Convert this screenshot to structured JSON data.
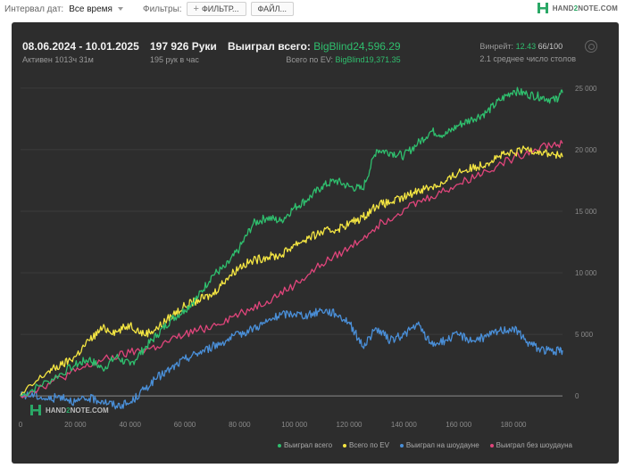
{
  "topbar": {
    "interval_label": "Интервал дат:",
    "interval_value": "Все время",
    "filters_label": "Фильтры:",
    "filter_button": "ФИЛЬТР...",
    "file_button": "ФАЙЛ...",
    "logo_prefix": "HAND",
    "logo_two": "2",
    "logo_suffix": "NOTE.COM"
  },
  "summary": {
    "date_range": "08.06.2024 - 10.01.2025",
    "active": "Активен 1013ч 31м",
    "hands": "197 926 Руки",
    "hands_rate": "195 рук в час",
    "won_label": "Выиграл всего:",
    "won_value": "BigBlind24,596.29",
    "ev_label": "Всего по EV:",
    "ev_value": "BigBlind19,371.35",
    "winrate_label": "Винрейт:",
    "winrate_value": "12.43",
    "winrate_count": "66/100",
    "tables": "2.1 среднее число столов"
  },
  "watermark": {
    "prefix": "HAND",
    "two": "2",
    "suffix": "NOTE.COM"
  },
  "colors": {
    "won": "#2fbf6e",
    "ev": "#f5e642",
    "showdown": "#4a8fd8",
    "nonshowdown": "#e0457b",
    "grid": "#3c3c3c",
    "zero": "#8a8a8a"
  },
  "chart_data": {
    "type": "line",
    "xlabel": "",
    "ylabel": "",
    "xlim": [
      0,
      197926
    ],
    "ylim": [
      -1000,
      26000
    ],
    "x_ticks": [
      0,
      20000,
      40000,
      60000,
      80000,
      100000,
      120000,
      140000,
      160000,
      180000
    ],
    "x_tick_labels": [
      "0",
      "20 000",
      "40 000",
      "60 000",
      "80 000",
      "100 000",
      "120 000",
      "140 000",
      "160 000",
      "180 000"
    ],
    "y_ticks": [
      0,
      5000,
      10000,
      15000,
      20000,
      25000
    ],
    "y_tick_labels": [
      "0",
      "5 000",
      "10 000",
      "15 000",
      "20 000",
      "25 000"
    ],
    "grid": true,
    "legend_position": "bottom-right",
    "series": [
      {
        "name": "Выиграл всего",
        "color_key": "won",
        "x": [
          0,
          10000,
          20000,
          25000,
          30000,
          35000,
          40000,
          45000,
          50000,
          55000,
          60000,
          65000,
          70000,
          75000,
          80000,
          85000,
          90000,
          95000,
          100000,
          105000,
          110000,
          115000,
          120000,
          125000,
          130000,
          135000,
          140000,
          145000,
          150000,
          155000,
          160000,
          165000,
          170000,
          175000,
          180000,
          185000,
          190000,
          195000,
          197926
        ],
        "values": [
          0,
          1200,
          2500,
          3000,
          2200,
          3200,
          2500,
          3800,
          5000,
          6200,
          7000,
          8100,
          9800,
          10500,
          12000,
          14000,
          14500,
          14200,
          15300,
          16000,
          17000,
          17500,
          17000,
          16800,
          20000,
          19800,
          19500,
          20500,
          21500,
          21200,
          22000,
          22500,
          23000,
          24000,
          24800,
          24500,
          24300,
          24000,
          24600
        ]
      },
      {
        "name": "Всего по EV",
        "color_key": "ev",
        "x": [
          0,
          10000,
          15000,
          20000,
          25000,
          30000,
          35000,
          40000,
          45000,
          50000,
          55000,
          60000,
          65000,
          70000,
          75000,
          80000,
          85000,
          90000,
          95000,
          100000,
          105000,
          110000,
          115000,
          120000,
          125000,
          130000,
          135000,
          140000,
          145000,
          150000,
          155000,
          160000,
          165000,
          170000,
          175000,
          180000,
          185000,
          190000,
          195000,
          197926
        ],
        "values": [
          0,
          2000,
          2500,
          3200,
          4500,
          5500,
          5200,
          5800,
          5000,
          5500,
          6500,
          7300,
          7800,
          8200,
          9500,
          10500,
          11000,
          11300,
          11400,
          12300,
          12800,
          13300,
          13500,
          14000,
          14500,
          15500,
          15700,
          16100,
          16700,
          17000,
          17300,
          18200,
          18500,
          18900,
          19500,
          19700,
          20100,
          19800,
          19600,
          19400
        ]
      },
      {
        "name": "Выиграл на шоудауне",
        "color_key": "showdown",
        "x": [
          0,
          5000,
          10000,
          15000,
          20000,
          25000,
          30000,
          35000,
          40000,
          45000,
          50000,
          55000,
          60000,
          65000,
          70000,
          75000,
          80000,
          85000,
          90000,
          95000,
          100000,
          105000,
          110000,
          115000,
          120000,
          125000,
          130000,
          135000,
          140000,
          145000,
          150000,
          155000,
          160000,
          165000,
          170000,
          175000,
          180000,
          185000,
          190000,
          195000,
          197926
        ],
        "values": [
          0,
          100,
          -300,
          0,
          -500,
          -200,
          -400,
          -800,
          -600,
          500,
          1500,
          2200,
          3000,
          3500,
          4000,
          4500,
          5000,
          5500,
          6000,
          6600,
          6700,
          6500,
          7000,
          6700,
          6000,
          4000,
          5500,
          4500,
          5000,
          5800,
          4200,
          4500,
          5000,
          4500,
          4800,
          5300,
          5500,
          4400,
          3800,
          3600,
          3700
        ]
      },
      {
        "name": "Выиграл без шоудауна",
        "color_key": "nonshowdown",
        "x": [
          0,
          10000,
          20000,
          30000,
          40000,
          50000,
          60000,
          70000,
          80000,
          90000,
          100000,
          110000,
          120000,
          130000,
          140000,
          150000,
          160000,
          170000,
          180000,
          190000,
          197926
        ],
        "values": [
          0,
          1000,
          2000,
          2900,
          3500,
          4000,
          5000,
          5700,
          6700,
          7700,
          9000,
          10700,
          12000,
          13800,
          15200,
          16200,
          17200,
          18300,
          19300,
          20300,
          20500
        ]
      }
    ]
  }
}
